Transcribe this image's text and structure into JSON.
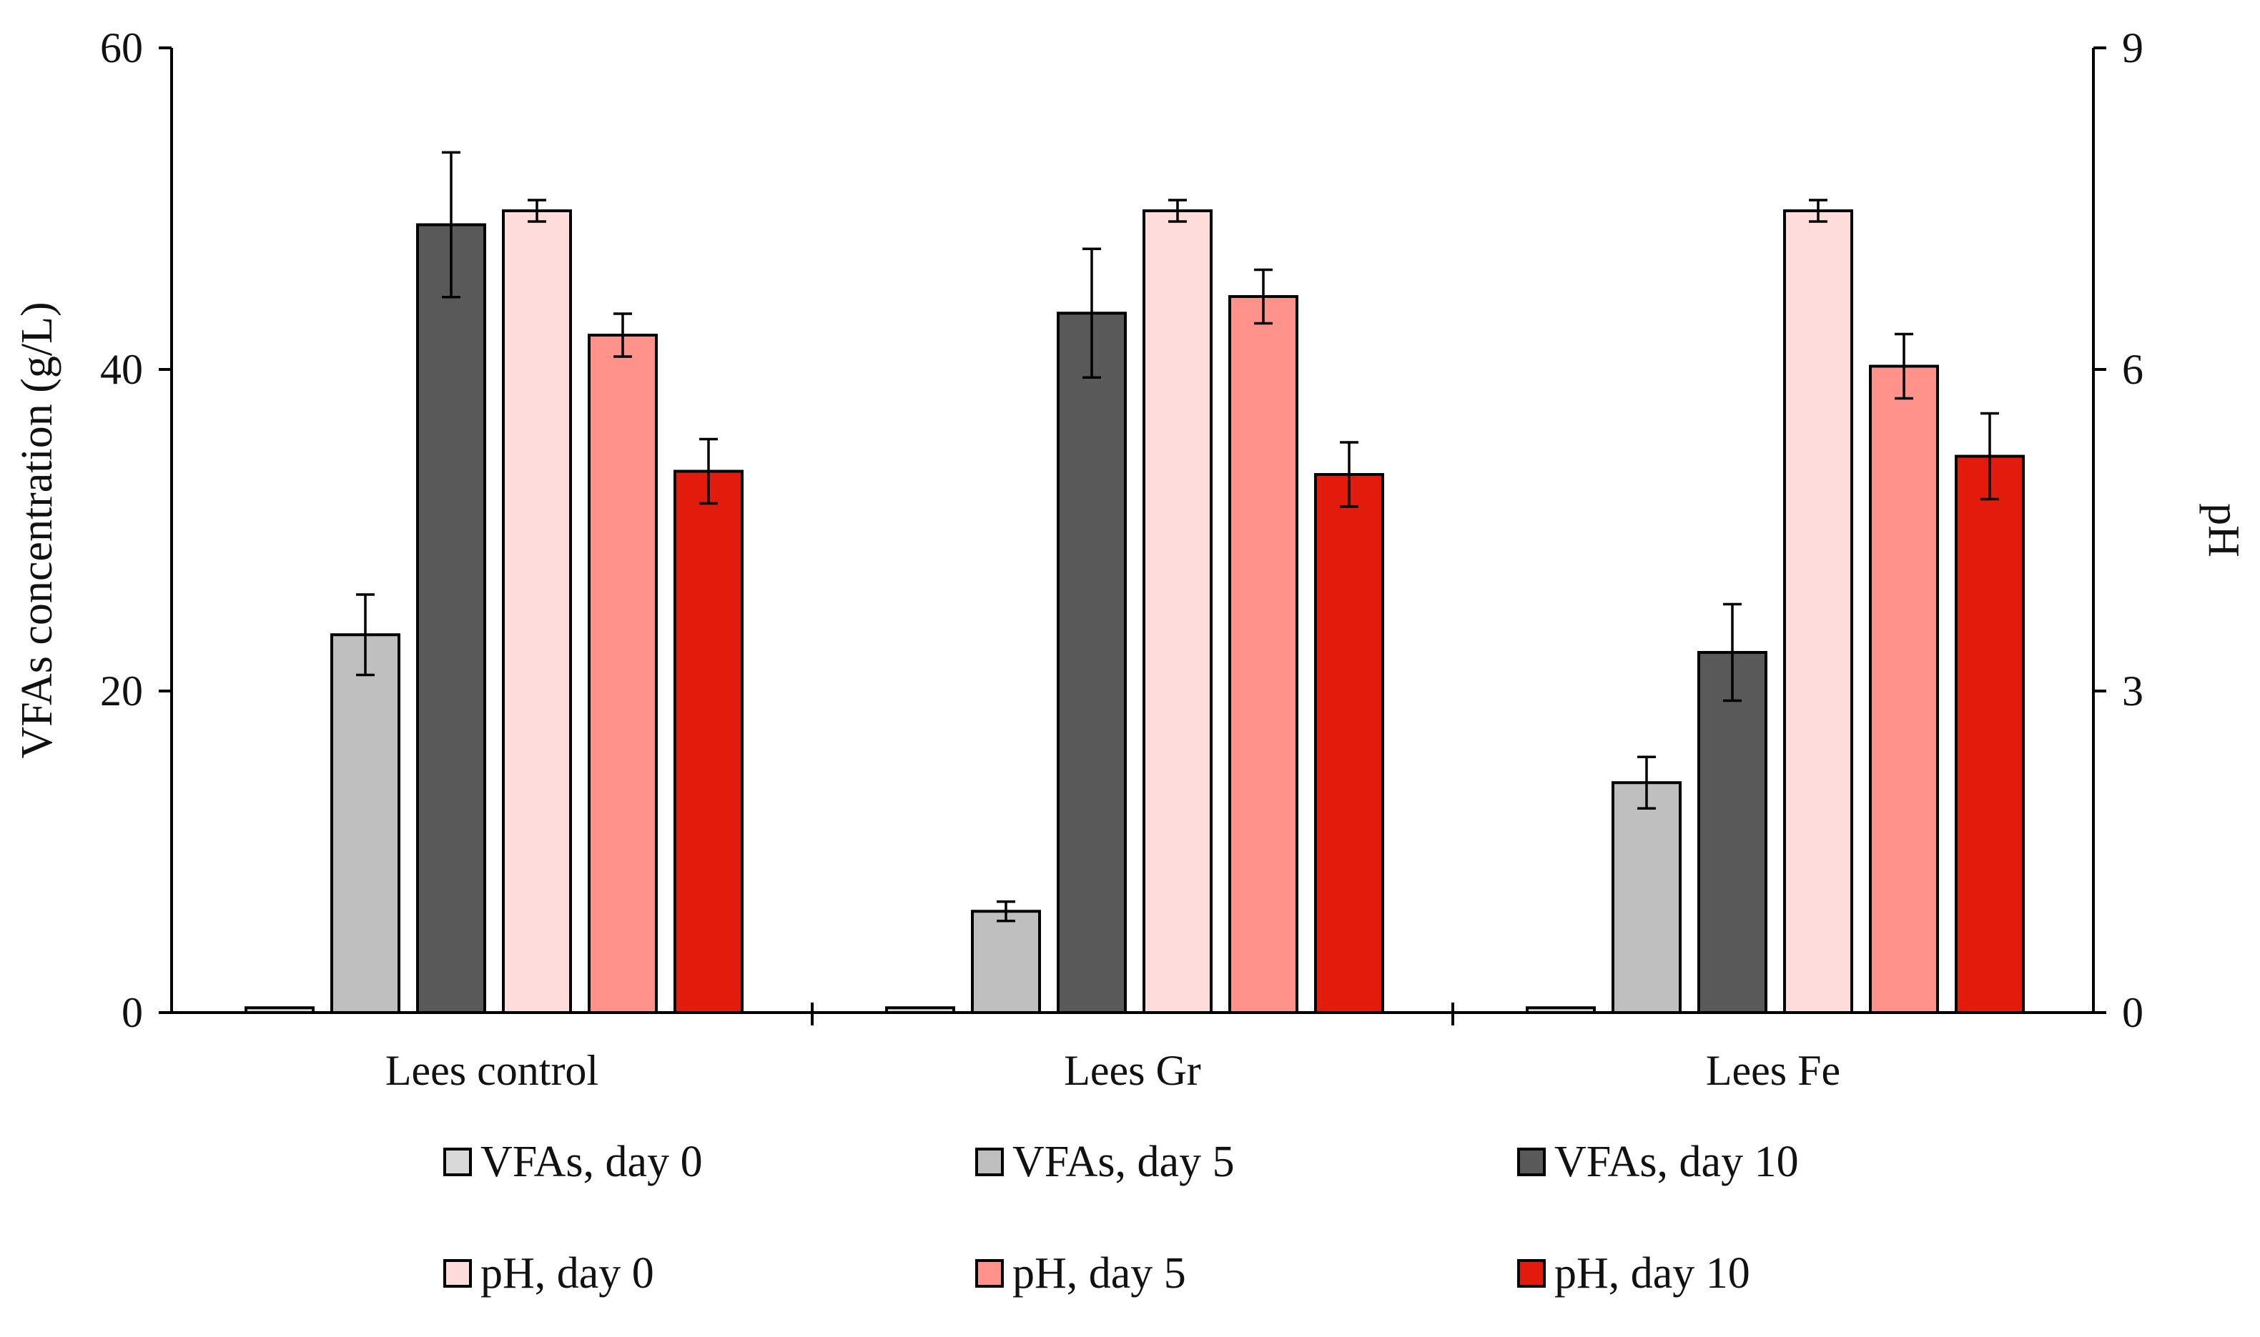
{
  "chart_data": {
    "type": "bar",
    "title": "",
    "xlabel": "",
    "ylabel": "VFAs concentration (g/L)",
    "y2label": "pH",
    "ylim": [
      0,
      60
    ],
    "y2lim": [
      0,
      9
    ],
    "yticks": [
      "0",
      "20",
      "40",
      "60"
    ],
    "y2ticks": [
      "0",
      "3",
      "6",
      "9"
    ],
    "grid": false,
    "legend_position": "bottom",
    "categories": [
      "Lees control",
      "Lees Gr",
      "Lees Fe"
    ],
    "series": [
      {
        "name": "VFAs, day 0",
        "axis": "left",
        "color": "#d9d9d9",
        "values": [
          0.3,
          0.3,
          0.3
        ],
        "errors": [
          0,
          0,
          0
        ]
      },
      {
        "name": "VFAs, day 5",
        "axis": "left",
        "color": "#bfbfbf",
        "values": [
          23.5,
          6.3,
          14.3
        ],
        "errors": [
          2.5,
          0.6,
          1.6
        ]
      },
      {
        "name": "VFAs, day 10",
        "axis": "left",
        "color": "#595959",
        "values": [
          49.0,
          43.5,
          22.4
        ],
        "errors": [
          4.5,
          4.0,
          3.0
        ]
      },
      {
        "name": "pH, day 0",
        "axis": "right",
        "color": "#ffdcdc",
        "values": [
          7.48,
          7.48,
          7.48
        ],
        "errors": [
          0.1,
          0.1,
          0.1
        ]
      },
      {
        "name": "pH, day 5",
        "axis": "right",
        "color": "#ff928a",
        "values": [
          6.32,
          6.68,
          6.03
        ],
        "errors": [
          0.2,
          0.25,
          0.3
        ]
      },
      {
        "name": "pH, day 10",
        "axis": "right",
        "color": "#e31b0c",
        "values": [
          5.05,
          5.02,
          5.19
        ],
        "errors": [
          0.3,
          0.3,
          0.4
        ]
      }
    ]
  }
}
